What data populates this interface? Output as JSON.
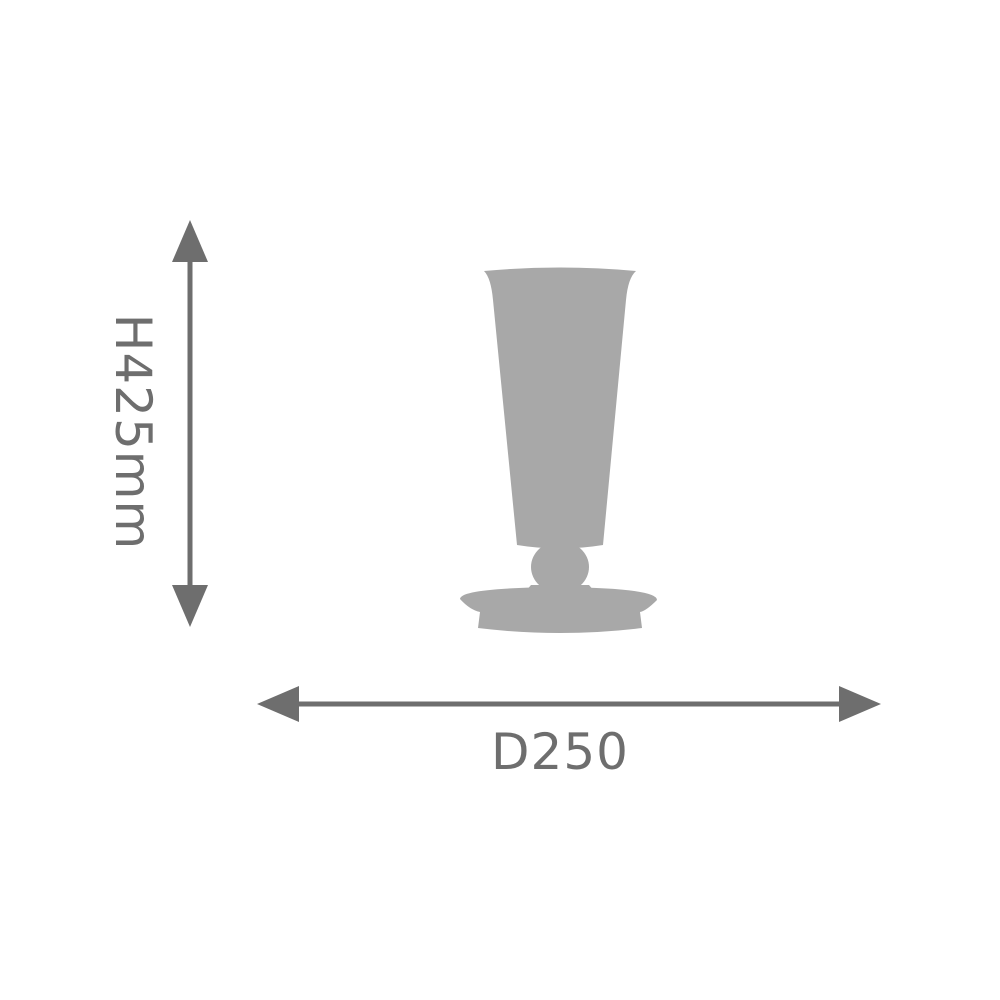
{
  "dimensions": {
    "height_label": "H425mm",
    "diameter_label": "D250"
  },
  "product": {
    "icon": "lamp-silhouette-icon"
  },
  "colors": {
    "silhouette_fill": "#a8a8a8",
    "arrow_color": "#6e6e6e",
    "text_color": "#6e6e6e",
    "background": "#ffffff"
  }
}
